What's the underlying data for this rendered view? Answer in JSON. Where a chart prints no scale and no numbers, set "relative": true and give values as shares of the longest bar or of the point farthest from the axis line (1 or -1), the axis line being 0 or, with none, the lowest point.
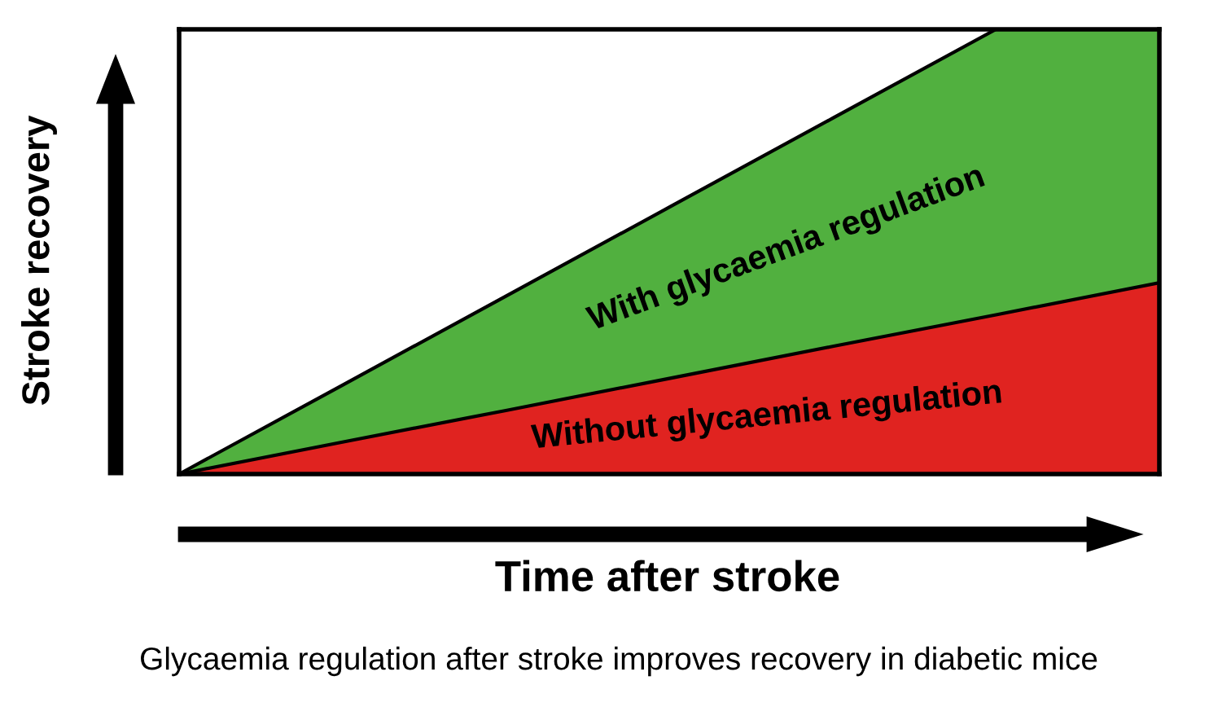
{
  "chart_data": {
    "type": "area",
    "relative": true,
    "stacked": true,
    "xlabel": "Time after stroke",
    "ylabel": "Stroke recovery",
    "categories": [
      null,
      null,
      null,
      null,
      null,
      null,
      null
    ],
    "series": [
      {
        "name": "Without glycaemia regulation",
        "color": "#e02320",
        "values": [
          0,
          0.072,
          0.143,
          0.215,
          0.287,
          0.358,
          0.43
        ]
      },
      {
        "name": "With glycaemia regulation",
        "color": "#51b03f",
        "values": [
          0,
          0.128,
          0.257,
          0.385,
          0.513,
          0.642,
          0.57
        ]
      }
    ],
    "annotations": [
      "Glycaemia regulation after stroke improves recovery in diabetic mice"
    ]
  }
}
